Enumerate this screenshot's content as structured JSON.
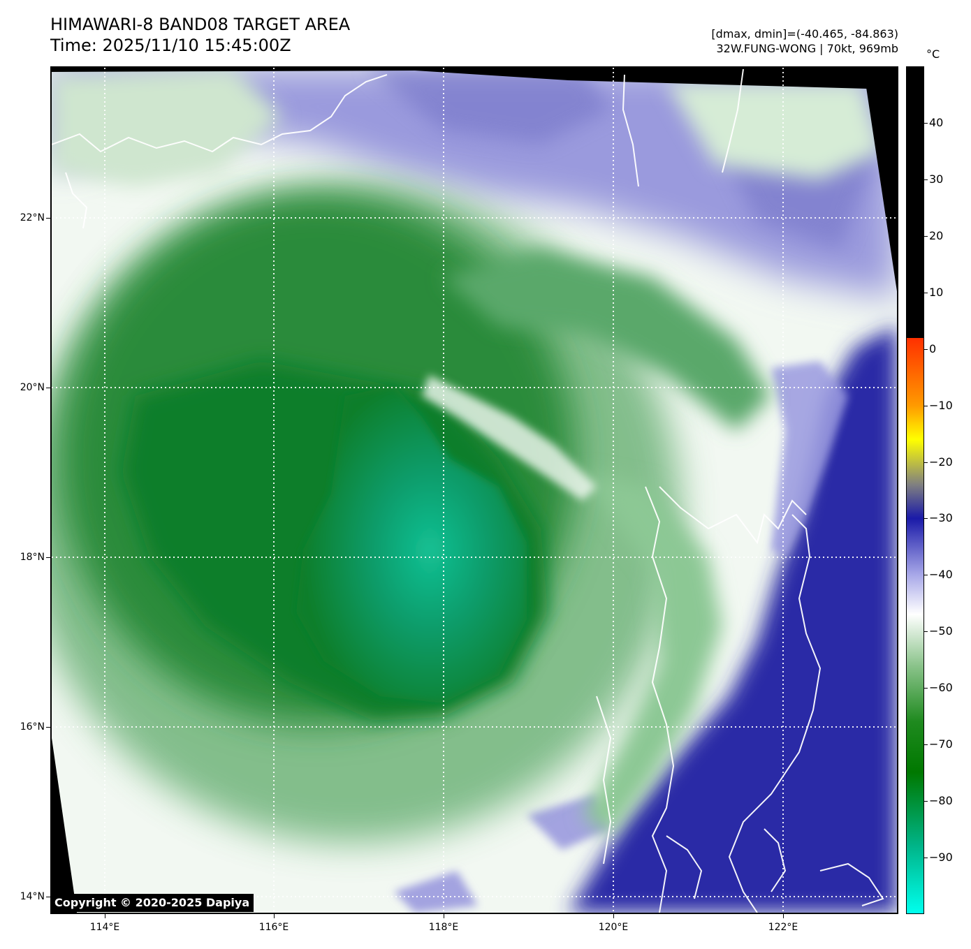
{
  "header": {
    "title": "HIMAWARI-8 BAND08 TARGET AREA",
    "time": "Time: 2025/11/10 15:45:00Z",
    "dmax_dmin": "[dmax, dmin]=(-40.465, -84.863)",
    "storm": "32W.FUNG-WONG | 70kt, 969mb"
  },
  "copyright": "Copyright © 2020-2025 Dapiya",
  "axes": {
    "latitude_labels": [
      "22°N",
      "20°N",
      "18°N",
      "16°N",
      "14°N"
    ],
    "longitude_labels": [
      "114°E",
      "116°E",
      "118°E",
      "120°E",
      "122°E"
    ]
  },
  "colorbar": {
    "unit": "°C",
    "tick_labels": [
      "40",
      "30",
      "20",
      "10",
      "0",
      "−10",
      "−20",
      "−30",
      "−40",
      "−50",
      "−60",
      "−70",
      "−80",
      "−90"
    ],
    "range": [
      -100,
      50
    ],
    "colors": {
      "warm_black": "#000000",
      "zero_red": "#ff3000",
      "orange": "#ff9a00",
      "yellow": "#ffff00",
      "gray": "#808080",
      "deep_blue": "#1a1aa8",
      "lavender": "#a8a8e8",
      "white": "#ffffff",
      "light_green": "#8cc48c",
      "mid_green": "#1f8a1f",
      "dark_green": "#007800",
      "teal": "#00b488",
      "cyan": "#00ffee"
    }
  },
  "map_colors": {
    "off_disk": "#000000",
    "background_blue": "#2a2aa6",
    "cirrus_lavender": "#8d8dd8",
    "outer_white": "#f2f8f2",
    "canopy_green": "#2a8a38",
    "core_dark_green": "#127a28",
    "coldest_teal": "#10b78c",
    "coastline": "#ffffff",
    "gridline": "#ffffff"
  }
}
